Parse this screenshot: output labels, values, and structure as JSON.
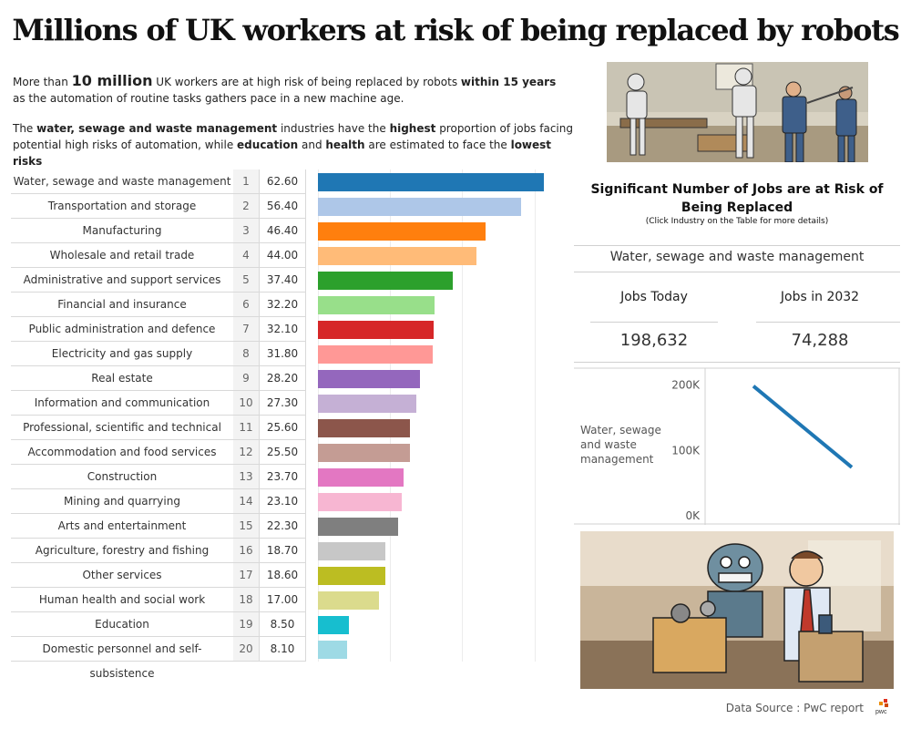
{
  "title": "Millions of UK workers at risk of being replaced by robots",
  "intro": {
    "p1_a": "More than ",
    "p1_big": "10 million",
    "p1_b": " UK workers are at high risk of being replaced by robots ",
    "p1_bold": "within 15 years",
    "p1_c": "as the automation of routine tasks gathers pace in a new machine age.",
    "p2_a": "The ",
    "p2_bold1": "water, sewage and waste management",
    "p2_b": " industries have the ",
    "p2_bold2": "highest",
    "p2_c": " proportion of jobs facing",
    "p2_d": "potential high risks of automation, while ",
    "p2_bold3": "education",
    "p2_e": " and ",
    "p2_bold4": "health",
    "p2_f": " are estimated to face the ",
    "p2_bold5": "lowest risks"
  },
  "chart_data": [
    {
      "type": "bar",
      "orientation": "horizontal",
      "categories": [
        "Water, sewage and waste management",
        "Transportation and storage",
        "Manufacturing",
        "Wholesale and retail trade",
        "Administrative and support services",
        "Financial and insurance",
        "Public administration and defence",
        "Electricity and gas supply",
        "Real estate",
        "Information and communication",
        "Professional, scientific and technical",
        "Accommodation and food services",
        "Construction",
        "Mining and quarrying",
        "Arts and entertainment",
        "Agriculture, forestry and fishing",
        "Other services",
        "Human health and social work",
        "Education",
        "Domestic personnel and self-subsistence"
      ],
      "ranks": [
        1,
        2,
        3,
        4,
        5,
        6,
        7,
        8,
        9,
        10,
        11,
        12,
        13,
        14,
        15,
        16,
        17,
        18,
        19,
        20
      ],
      "values": [
        "62.60",
        "56.40",
        "46.40",
        "44.00",
        "37.40",
        "32.20",
        "32.10",
        "31.80",
        "28.20",
        "27.30",
        "25.60",
        "25.50",
        "23.70",
        "23.10",
        "22.30",
        "18.70",
        "18.60",
        "17.00",
        "8.50",
        "8.10"
      ],
      "colors": [
        "#1f77b4",
        "#aec7e8",
        "#ff7f0e",
        "#ffbb78",
        "#2ca02c",
        "#98df8a",
        "#d62728",
        "#ff9896",
        "#9467bd",
        "#c5b0d5",
        "#8c564b",
        "#c49c94",
        "#e377c2",
        "#f7b6d2",
        "#7f7f7f",
        "#c7c7c7",
        "#bcbd22",
        "#dbdb8d",
        "#17becf",
        "#9edae5"
      ],
      "xlim": [
        0,
        66
      ]
    },
    {
      "type": "line",
      "title": "Significant Number of Jobs are at Risk of Being Replaced",
      "subtitle": "(Click Industry on the Table for more details)",
      "selected_industry": "Water, sewage and waste management",
      "row_label": "Water, sewage and waste management",
      "columns": [
        "Jobs Today",
        "Jobs in 2032"
      ],
      "values": [
        198632,
        74288
      ],
      "value_labels": [
        "198,632",
        "74,288"
      ],
      "ylim": [
        0,
        215000
      ],
      "yticks": [
        "0K",
        "100K",
        "200K"
      ],
      "line_color": "#1f77b4"
    }
  ],
  "images": {
    "top": "robots-in-office-illustration",
    "bottom": "robot-and-man-carrying-boxes-illustration"
  },
  "source": "Data Source : PwC report",
  "logo": "pwc"
}
